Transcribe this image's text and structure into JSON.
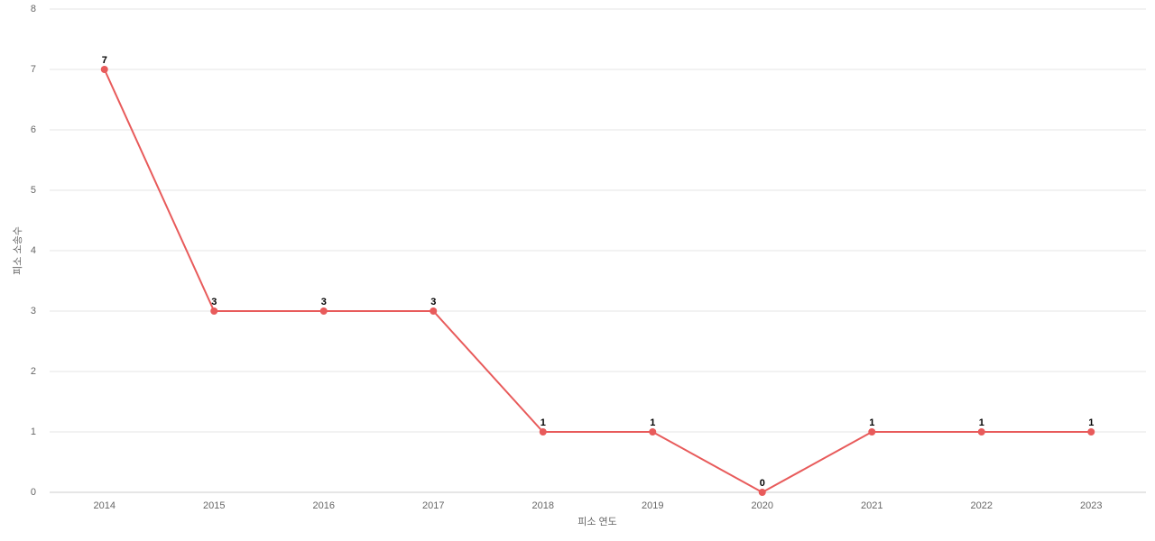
{
  "chart_data": {
    "type": "line",
    "x_label": "피소 연도",
    "y_label": "피소 소송수",
    "categories": [
      "2014",
      "2015",
      "2016",
      "2017",
      "2018",
      "2019",
      "2020",
      "2021",
      "2022",
      "2023"
    ],
    "values": [
      7,
      3,
      3,
      3,
      1,
      1,
      0,
      1,
      1,
      1
    ],
    "color": "#e85b5b",
    "ylim": [
      0,
      8
    ],
    "yticks": [
      0,
      1,
      2,
      3,
      4,
      5,
      6,
      7,
      8
    ],
    "grid": true,
    "data_labels": true
  }
}
